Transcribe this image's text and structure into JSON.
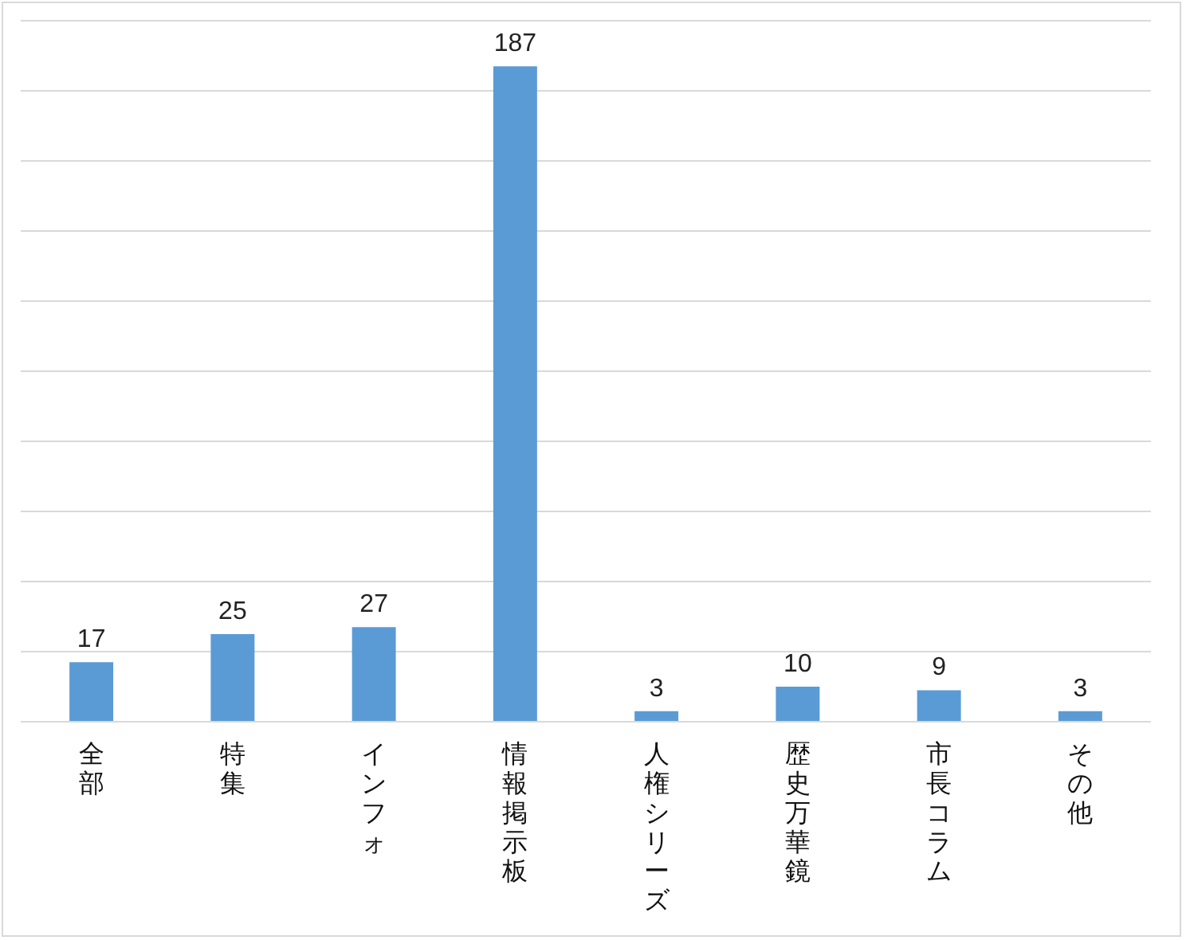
{
  "chart_data": {
    "type": "bar",
    "categories": [
      "全部",
      "特集",
      "インフォ",
      "情報掲示板",
      "人権シリーズ",
      "歴史万華鏡",
      "市長コラム",
      "その他"
    ],
    "values": [
      17,
      25,
      27,
      187,
      3,
      10,
      9,
      3
    ],
    "color": "#5b9bd5",
    "ylim": [
      0,
      200
    ],
    "yticks": [
      {
        "value": 0,
        "label": null
      },
      {
        "value": 20,
        "label": null
      },
      {
        "value": 40,
        "label": null
      },
      {
        "value": 60,
        "label": null
      },
      {
        "value": 80,
        "label": null
      },
      {
        "value": 100,
        "label": null
      },
      {
        "value": 120,
        "label": null
      },
      {
        "value": 140,
        "label": null
      },
      {
        "value": 160,
        "label": null
      },
      {
        "value": 180,
        "label": null
      },
      {
        "value": 200,
        "label": null
      }
    ],
    "grid": "y",
    "tick_labels": "x",
    "data_labels": true
  }
}
